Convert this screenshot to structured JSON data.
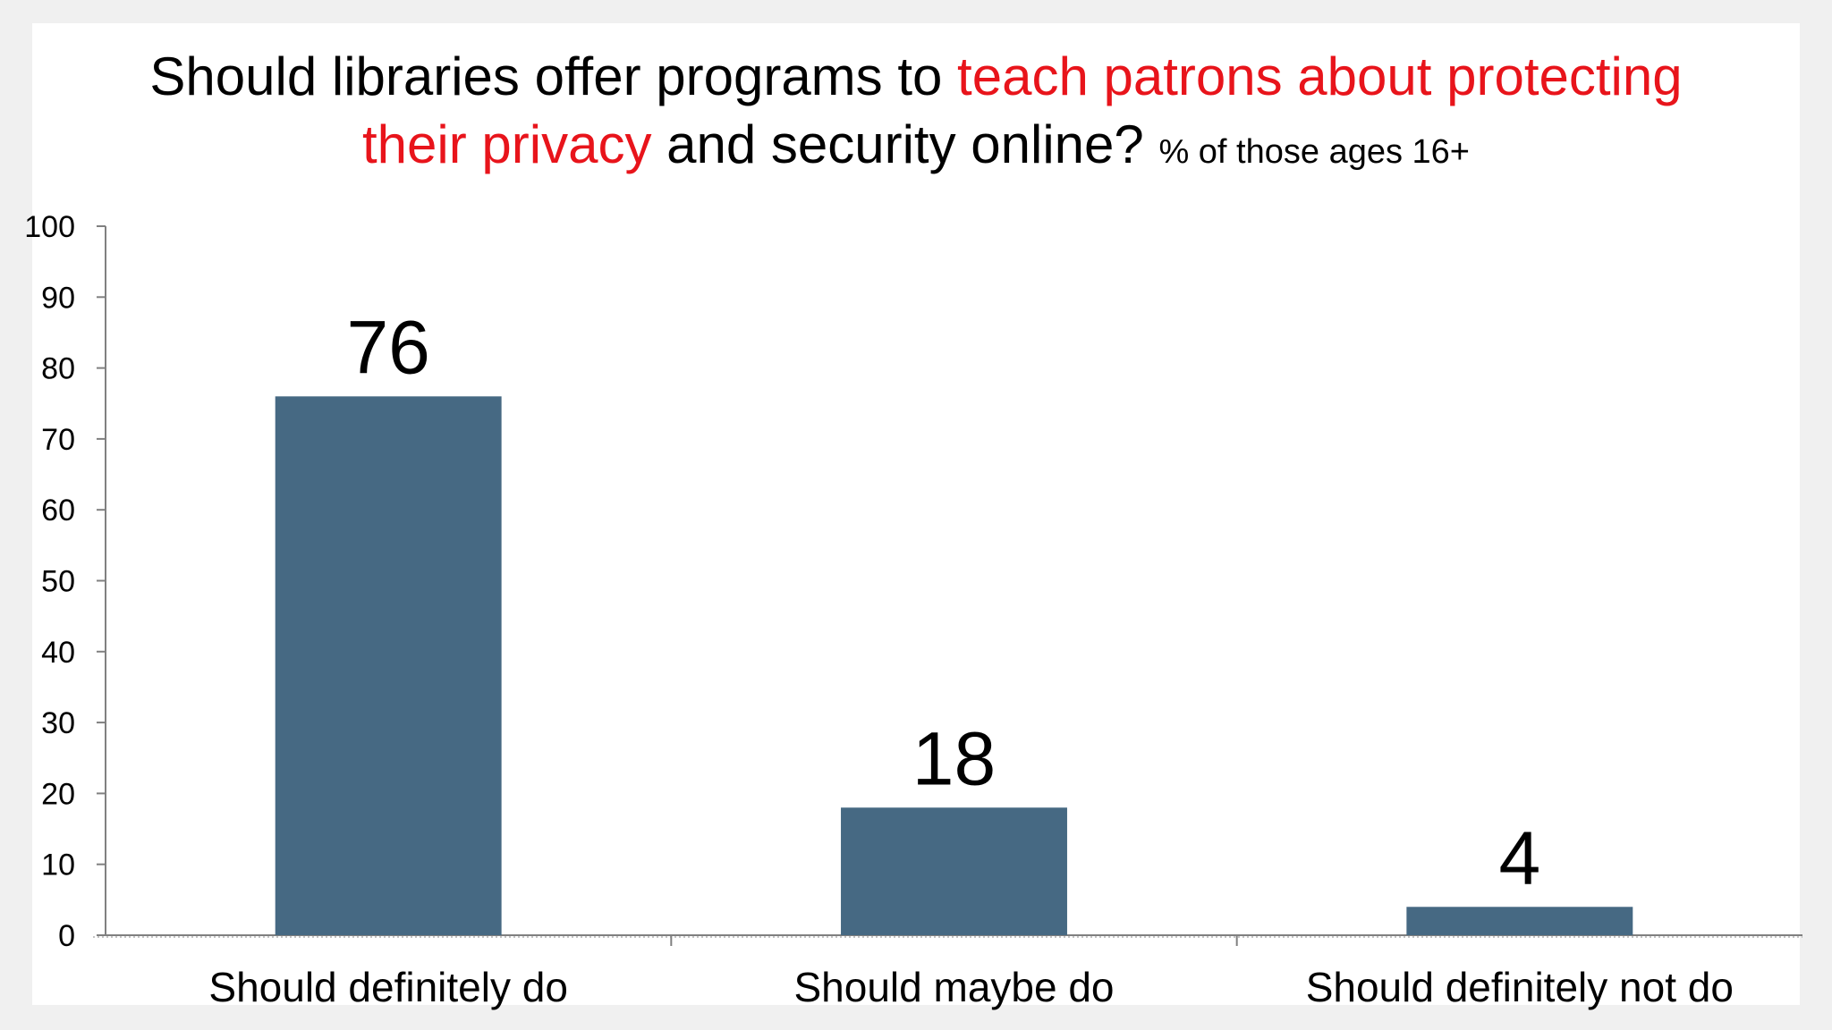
{
  "title": {
    "part1": "Should libraries offer programs to ",
    "highlight1": "teach patrons about protecting",
    "highlight2": "their privacy",
    "part2": " and security online?",
    "suffix": "% of those ages 16+"
  },
  "colors": {
    "bar": "#466983",
    "accent": "#e8141b",
    "axis": "#808080"
  },
  "chart_data": {
    "type": "bar",
    "title": "Should libraries offer programs to teach patrons about protecting their privacy and security online?",
    "subtitle": "% of those ages 16+",
    "categories": [
      "Should definitely do",
      "Should maybe do",
      "Should definitely not do"
    ],
    "values": [
      76,
      18,
      4
    ],
    "data_labels": [
      "76",
      "18",
      "4"
    ],
    "ylim": [
      0,
      100
    ],
    "yticks": [
      0,
      10,
      20,
      30,
      40,
      50,
      60,
      70,
      80,
      90,
      100
    ],
    "xlabel": "",
    "ylabel": "",
    "grid": false,
    "legend": "none"
  }
}
